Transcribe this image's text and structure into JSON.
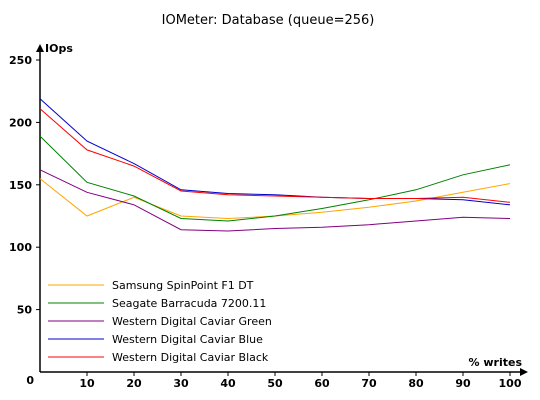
{
  "chart_data": {
    "type": "line",
    "title": "IOMeter: Database (queue=256)",
    "ylabel": "IOps",
    "xlabel": "% writes",
    "x": [
      0,
      10,
      20,
      30,
      40,
      50,
      60,
      70,
      80,
      90,
      100
    ],
    "xlim": [
      0,
      100
    ],
    "ylim": [
      0,
      250
    ],
    "x_ticks": [
      0,
      10,
      20,
      30,
      40,
      50,
      60,
      70,
      80,
      90,
      100
    ],
    "y_ticks": [
      0,
      50,
      100,
      150,
      200,
      250
    ],
    "grid": false,
    "legend_position": "bottom-left",
    "series": [
      {
        "name": "Samsung SpinPoint F1 DT",
        "color": "#ffa500",
        "values": [
          155,
          125,
          140,
          125,
          123,
          125,
          128,
          132,
          137,
          144,
          151
        ]
      },
      {
        "name": "Seagate Barracuda 7200.11",
        "color": "#008000",
        "values": [
          189,
          152,
          141,
          123,
          121,
          125,
          131,
          138,
          146,
          158,
          166
        ]
      },
      {
        "name": "Western Digital Caviar Green",
        "color": "#800080",
        "values": [
          162,
          144,
          134,
          114,
          113,
          115,
          116,
          118,
          121,
          124,
          123
        ]
      },
      {
        "name": "Western Digital Caviar Blue",
        "color": "#0000cd",
        "values": [
          219,
          185,
          167,
          146,
          143,
          142,
          140,
          139,
          139,
          138,
          134
        ]
      },
      {
        "name": "Western Digital Caviar Black",
        "color": "#ff0000",
        "values": [
          211,
          178,
          165,
          145,
          142,
          141,
          140,
          139,
          139,
          140,
          136
        ]
      }
    ]
  }
}
